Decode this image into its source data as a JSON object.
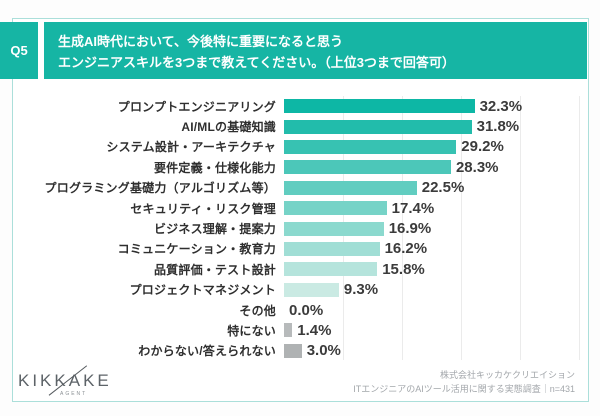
{
  "header": {
    "question_no": "Q5",
    "title_lines": [
      "生成AI時代において、今後特に重要になると思う",
      "エンジニアスキルを3つまで教えてください。（上位3つまで回答可）"
    ]
  },
  "chart_data": {
    "type": "bar",
    "orientation": "horizontal",
    "unit": "%",
    "title": "生成AI時代において、今後特に重要になると思うエンジニアスキル（上位3つまで回答可）",
    "categories": [
      "プロンプトエンジニアリング",
      "AI/MLの基礎知識",
      "システム設計・アーキテクチャ",
      "要件定義・仕様化能力",
      "プログラミング基礎力（アルゴリズム等）",
      "セキュリティ・リスク管理",
      "ビジネス理解・提案力",
      "コミュニケーション・教育力",
      "品質評価・テスト設計",
      "プロジェクトマネジメント",
      "その他",
      "特にない",
      "わからない/答えられない"
    ],
    "values": [
      32.3,
      31.8,
      29.2,
      28.3,
      22.5,
      17.4,
      16.9,
      16.2,
      15.8,
      9.3,
      0.0,
      1.4,
      3.0
    ],
    "value_labels": [
      "32.3%",
      "31.8%",
      "29.2%",
      "28.3%",
      "22.5%",
      "17.4%",
      "16.9%",
      "16.2%",
      "15.8%",
      "9.3%",
      "0.0%",
      "1.4%",
      "3.0%"
    ],
    "bar_colors": [
      "#0db7a5",
      "#22bcab",
      "#37c2b2",
      "#4cc7b9",
      "#61cdc0",
      "#76d3c7",
      "#8bd9ce",
      "#a0ded5",
      "#b5e4dc",
      "#caeae3",
      "#b7babb",
      "#b7babb",
      "#afb2b3"
    ],
    "xlim": [
      0,
      50
    ],
    "gridlines_percent": [
      10,
      20,
      30,
      40,
      50
    ],
    "grid": true,
    "legend": "none"
  },
  "footer": {
    "logo_text": "KIKKAKE",
    "logo_subtext": "AGENT",
    "source_line1": "株式会社キッカケクリエイション",
    "source_line2": "ITエンジニアのAIツール活用に関する実態調査｜n=431"
  },
  "colors": {
    "accent_teal": "#16b5a4",
    "box_border": "#abdfda",
    "bar_gray": "#b7babb",
    "label_text": "#2f2f2f",
    "value_text": "#3b3b3b",
    "source_text": "#a3a7ab"
  }
}
